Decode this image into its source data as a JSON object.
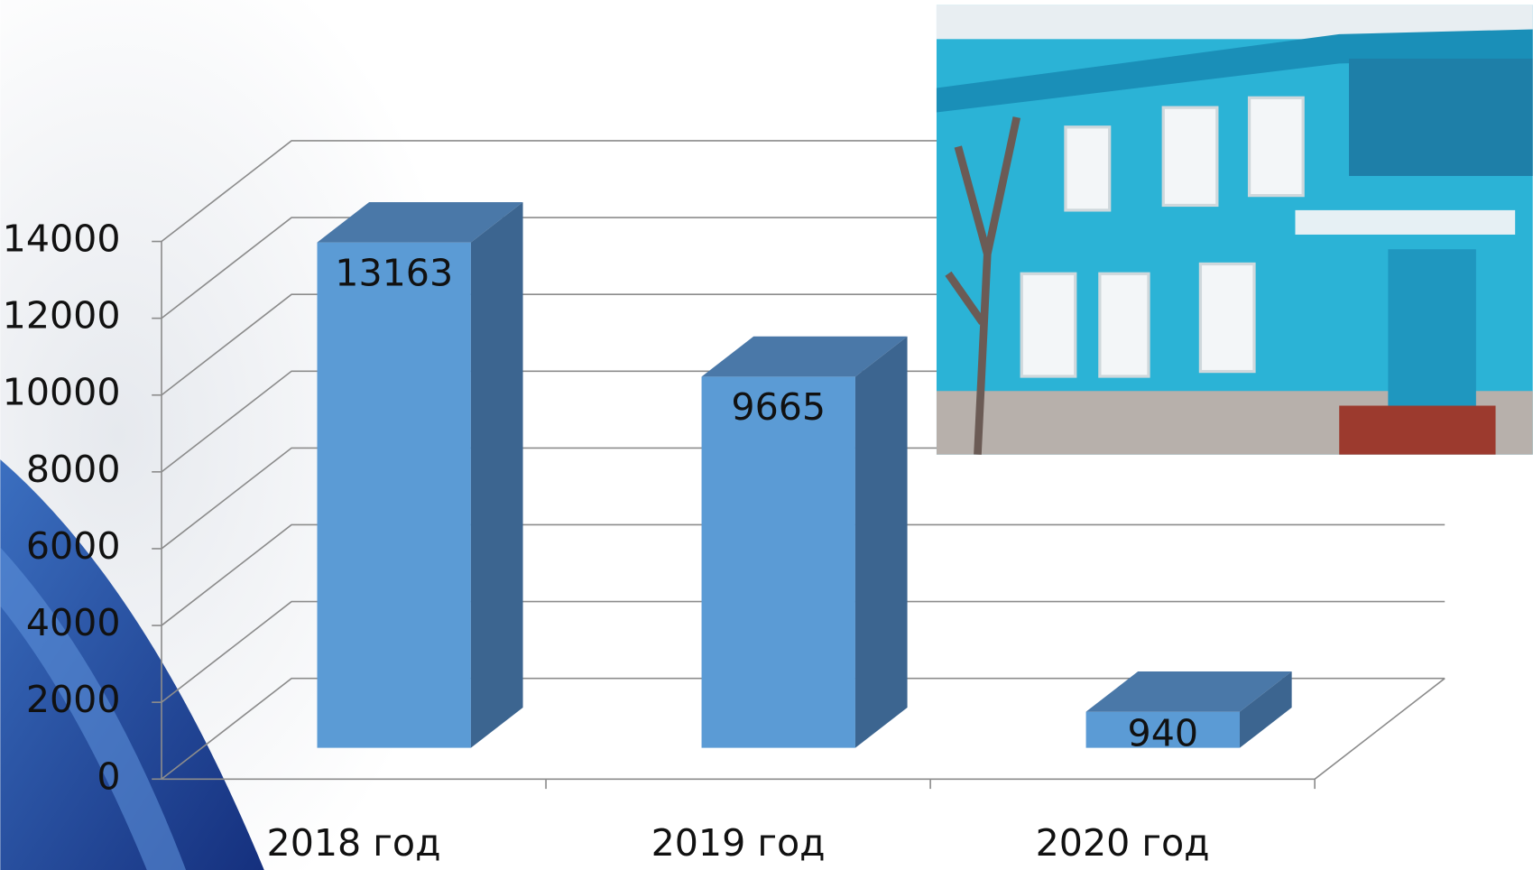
{
  "chart_data": {
    "type": "bar3d",
    "categories": [
      "2018 год",
      "2019 год",
      "2020 год"
    ],
    "values": [
      13163,
      9665,
      940
    ],
    "colors": {
      "front": "#5b9bd5",
      "top": "#4a78a8",
      "side": "#3c6590"
    },
    "ylim": [
      0,
      14000
    ],
    "yticks": [
      0,
      2000,
      4000,
      6000,
      8000,
      10000,
      12000,
      14000
    ],
    "grid": true
  }
}
